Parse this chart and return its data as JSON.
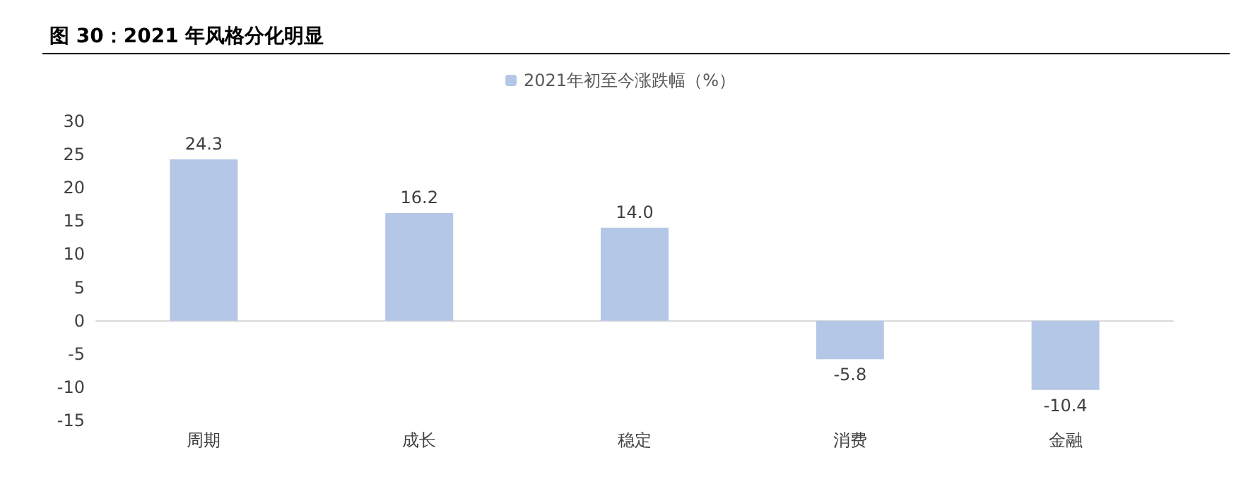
{
  "chart_data": {
    "type": "bar",
    "title": "图 30：2021 年风格分化明显",
    "categories": [
      "周期",
      "成长",
      "稳定",
      "消费",
      "金融"
    ],
    "series": [
      {
        "name": "2021年初至今涨跌幅（%）",
        "color": "#b4c7e7",
        "values": [
          24.3,
          16.2,
          14.0,
          -5.8,
          -10.4
        ]
      }
    ],
    "value_labels": [
      "24.3",
      "16.2",
      "14.0",
      "-5.8",
      "-10.4"
    ],
    "ylim": [
      -15,
      30
    ],
    "yticks": [
      -15,
      -10,
      -5,
      0,
      5,
      10,
      15,
      20,
      25,
      30
    ],
    "legend": "top"
  }
}
